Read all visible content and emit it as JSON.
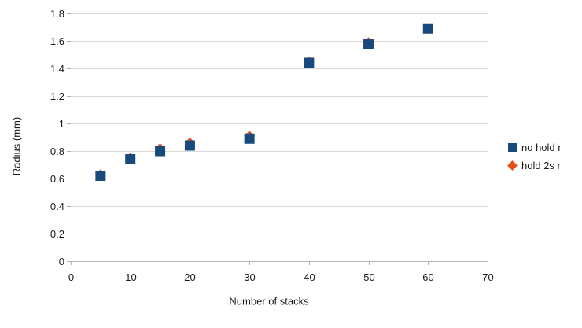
{
  "chart_data": {
    "type": "scatter",
    "title": "",
    "xlabel": "Number of stacks",
    "ylabel": "Radius (mm)",
    "x": [
      5,
      10,
      15,
      20,
      30,
      40,
      50,
      60
    ],
    "series": [
      {
        "name": "no hold r",
        "marker": "square",
        "color": "#17497c",
        "values": [
          0.62,
          0.74,
          0.8,
          0.84,
          0.89,
          1.44,
          1.58,
          1.69
        ]
      },
      {
        "name": "hold 2s r",
        "marker": "diamond",
        "color": "#e84c17",
        "values": [
          0.63,
          0.75,
          0.82,
          0.86,
          0.91,
          1.45,
          1.59,
          1.69
        ]
      }
    ],
    "xlim": [
      0,
      70
    ],
    "ylim": [
      0,
      1.8
    ],
    "xticks": [
      0,
      10,
      20,
      30,
      40,
      50,
      60,
      70
    ],
    "yticks": [
      0,
      0.2,
      0.4,
      0.6,
      0.8,
      1,
      1.2,
      1.4,
      1.6,
      1.8
    ],
    "grid": "horizontal",
    "legend_position": "right",
    "legend": [
      {
        "label": "no hold r",
        "marker": "square",
        "color": "#17497c"
      },
      {
        "label": "hold 2s r",
        "marker": "diamond",
        "color": "#e84c17"
      }
    ]
  },
  "colors": {
    "gridline": "#d9d9d9",
    "axis_line": "#b3b3b3",
    "tick": "#b3b3b3",
    "text": "#1a1a1a",
    "background": "#ffffff"
  }
}
